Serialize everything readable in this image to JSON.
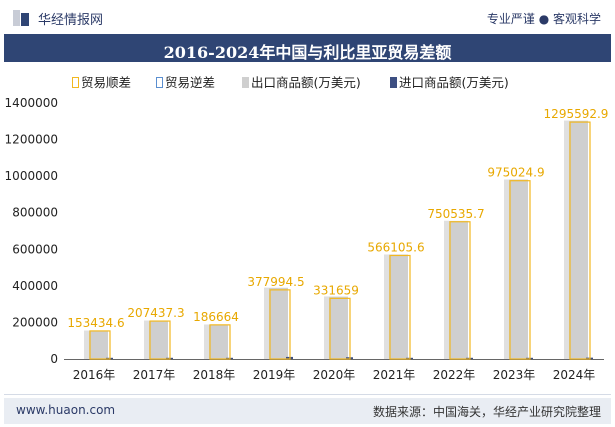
{
  "header": {
    "brand": "华经情报网",
    "tagline": "专业严谨 ● 客观科学"
  },
  "title": "2016-2024年中国与利比里亚贸易差额",
  "legend": [
    {
      "label": "贸易顺差",
      "color": "#f2b820",
      "style": "outline"
    },
    {
      "label": "贸易逆差",
      "color": "#5b8fd0",
      "style": "outline"
    },
    {
      "label": "出口商品额(万美元)",
      "color": "#cfcfcf",
      "style": "fill"
    },
    {
      "label": "进口商品额(万美元)",
      "color": "#3d4f82",
      "style": "fill"
    }
  ],
  "chart_data": {
    "type": "bar",
    "categories": [
      "2016年",
      "2017年",
      "2018年",
      "2019年",
      "2020年",
      "2021年",
      "2022年",
      "2023年",
      "2024年"
    ],
    "series": [
      {
        "name": "贸易顺差",
        "values": [
          153434.6,
          207437.3,
          186664,
          377994.5,
          331659,
          566105.6,
          750535.7,
          975024.9,
          1295592.9
        ]
      },
      {
        "name": "贸易逆差",
        "values": [
          0,
          0,
          0,
          0,
          0,
          0,
          0,
          0,
          0
        ]
      },
      {
        "name": "出口商品额(万美元)",
        "values": [
          155900,
          209300,
          188600,
          389400,
          341200,
          571400,
          755300,
          981600,
          1303000
        ]
      },
      {
        "name": "进口商品额(万美元)",
        "values": [
          2465,
          1863,
          1936,
          11406,
          9541,
          5294,
          4764,
          6575,
          7407
        ]
      }
    ],
    "data_labels": [
      "153434.6",
      "207437.3",
      "186664",
      "377994.5",
      "331659",
      "566105.6",
      "750535.7",
      "975024.9",
      "1295592.9"
    ],
    "ylim": [
      0,
      1400000
    ],
    "yticks": [
      "0",
      "200000",
      "400000",
      "600000",
      "800000",
      "1000000",
      "1200000",
      "1400000"
    ],
    "grid": false,
    "legend_position": "top"
  },
  "footer": {
    "site": "www.huaon.com",
    "source": "数据来源：中国海关，华经产业研究院整理"
  },
  "colors": {
    "titlebar": "#2f4574",
    "surplus": "#f2b820",
    "export": "#cfcfcf",
    "import": "#3d4f82"
  }
}
